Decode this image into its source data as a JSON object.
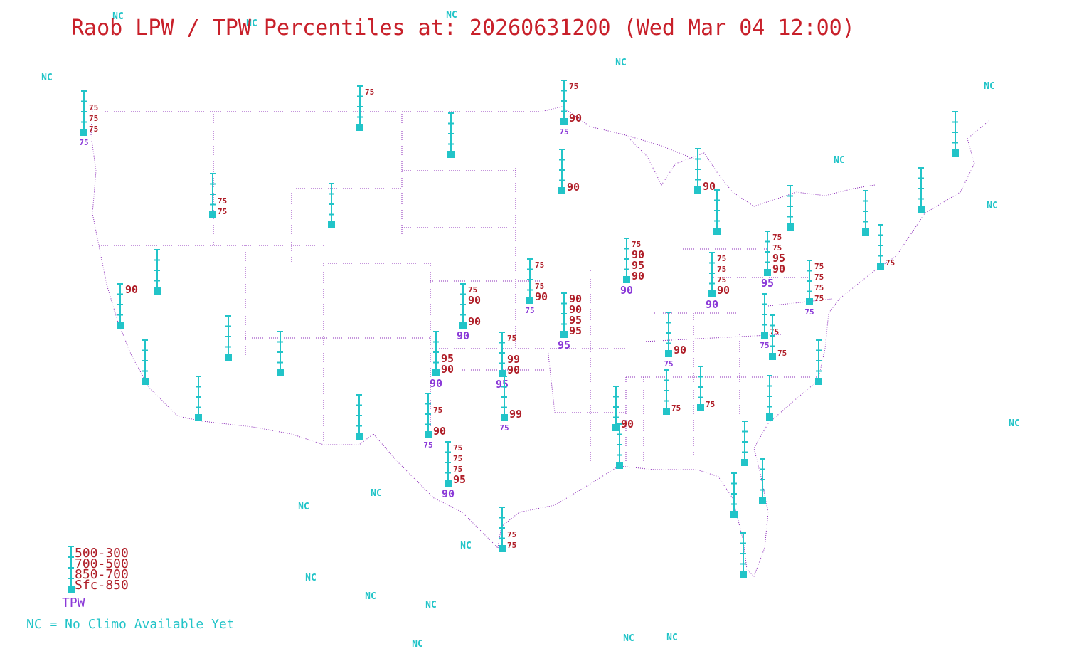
{
  "title": "Raob LPW / TPW Percentiles at: 20260631200 (Wed Mar 04 12:00)",
  "colors": {
    "title": "#c8202a",
    "layer": "#b0202a",
    "tpw": "#8b3ad8",
    "station": "#22c4c8",
    "nc": "#22c4c8",
    "boundary": "#8b2bb8"
  },
  "legend": {
    "layers": [
      "500-300",
      "700-500",
      "850-700",
      "Sfc-850"
    ],
    "tpw_label": "TPW",
    "nc_note": "NC = No Climo Available Yet"
  },
  "nc_label": "NC",
  "stations": [
    {
      "id": "uil",
      "layers": [
        "",
        "75",
        "75",
        "75"
      ],
      "tpw": "75"
    },
    {
      "id": "tfx",
      "layers": [
        "75",
        "",
        "",
        ""
      ],
      "tpw": ""
    },
    {
      "id": "bis",
      "layers": [
        "",
        "",
        "",
        ""
      ],
      "tpw": ""
    },
    {
      "id": "inl",
      "layers": [
        "75",
        "",
        "",
        "90"
      ],
      "tpw": "75"
    },
    {
      "id": "mpx",
      "layers": [
        "",
        "",
        "",
        "90"
      ],
      "tpw": ""
    },
    {
      "id": "boi",
      "layers": [
        "",
        "",
        "75",
        "75"
      ],
      "tpw": ""
    },
    {
      "id": "riw",
      "layers": [
        "",
        "",
        "",
        ""
      ],
      "tpw": ""
    },
    {
      "id": "mfr",
      "layers": [
        "",
        "",
        "",
        ""
      ],
      "tpw": ""
    },
    {
      "id": "rev",
      "layers": [
        "",
        "",
        "",
        ""
      ],
      "tpw": ""
    },
    {
      "id": "oak",
      "layers": [
        "90",
        "",
        "",
        ""
      ],
      "tpw": ""
    },
    {
      "id": "vbg",
      "layers": [
        "",
        "",
        "",
        ""
      ],
      "tpw": ""
    },
    {
      "id": "nkx",
      "layers": [
        "",
        "",
        "",
        ""
      ],
      "tpw": ""
    },
    {
      "id": "vef",
      "layers": [
        "",
        "",
        "",
        ""
      ],
      "tpw": ""
    },
    {
      "id": "slc",
      "layers": [
        "",
        "",
        "",
        ""
      ],
      "tpw": ""
    },
    {
      "id": "abq",
      "layers": [
        "",
        "",
        "",
        ""
      ],
      "tpw": ""
    },
    {
      "id": "ddc",
      "layers": [
        "75",
        "90",
        "",
        "90"
      ],
      "tpw": "90"
    },
    {
      "id": "top",
      "layers": [
        "75",
        "",
        "75",
        "90"
      ],
      "tpw": "75"
    },
    {
      "id": "sgf",
      "layers": [
        "90",
        "90",
        "95",
        "95"
      ],
      "tpw": "95"
    },
    {
      "id": "ilx",
      "layers": [
        "75",
        "90",
        "95",
        "90"
      ],
      "tpw": "90"
    },
    {
      "id": "ama",
      "layers": [
        "",
        "",
        "95",
        "90"
      ],
      "tpw": "90"
    },
    {
      "id": "oun",
      "layers": [
        "75",
        "",
        "99",
        "90"
      ],
      "tpw": "95"
    },
    {
      "id": "maf",
      "layers": [
        "",
        "75",
        "",
        "90"
      ],
      "tpw": "75"
    },
    {
      "id": "fwd",
      "layers": [
        "",
        "",
        "",
        "99"
      ],
      "tpw": "75"
    },
    {
      "id": "drt",
      "layers": [
        "75",
        "75",
        "75",
        "95"
      ],
      "tpw": "90"
    },
    {
      "id": "crp",
      "layers": [
        "",
        "",
        "75",
        "75"
      ],
      "tpw": ""
    },
    {
      "id": "lch",
      "layers": [
        "",
        "",
        "",
        ""
      ],
      "tpw": ""
    },
    {
      "id": "jan",
      "layers": [
        "",
        "",
        "",
        "90"
      ],
      "tpw": ""
    },
    {
      "id": "bna",
      "layers": [
        "",
        "",
        "",
        "90"
      ],
      "tpw": "75"
    },
    {
      "id": "bmx",
      "layers": [
        "",
        "",
        "",
        "75"
      ],
      "tpw": ""
    },
    {
      "id": "ffc",
      "layers": [
        "",
        "",
        "",
        "75"
      ],
      "tpw": ""
    },
    {
      "id": "chs",
      "layers": [
        "",
        "",
        "",
        ""
      ],
      "tpw": ""
    },
    {
      "id": "tlh",
      "layers": [
        "",
        "",
        "",
        ""
      ],
      "tpw": ""
    },
    {
      "id": "jax",
      "layers": [
        "",
        "",
        "",
        ""
      ],
      "tpw": ""
    },
    {
      "id": "tbw",
      "layers": [
        "",
        "",
        "",
        ""
      ],
      "tpw": ""
    },
    {
      "id": "xmr",
      "layers": [
        "",
        "",
        "",
        ""
      ],
      "tpw": ""
    },
    {
      "id": "mfl",
      "layers": [
        "",
        "",
        "",
        ""
      ],
      "tpw": ""
    },
    {
      "id": "apx",
      "layers": [
        "",
        "",
        "",
        "90"
      ],
      "tpw": ""
    },
    {
      "id": "dtx",
      "layers": [
        "",
        "",
        "",
        ""
      ],
      "tpw": ""
    },
    {
      "id": "iln",
      "layers": [
        "75",
        "75",
        "75",
        "90"
      ],
      "tpw": "90"
    },
    {
      "id": "pit",
      "layers": [
        "75",
        "75",
        "95",
        "90"
      ],
      "tpw": "95"
    },
    {
      "id": "buf",
      "layers": [
        "",
        "",
        "",
        ""
      ],
      "tpw": ""
    },
    {
      "id": "alb",
      "layers": [
        "",
        "",
        "",
        ""
      ],
      "tpw": ""
    },
    {
      "id": "iad",
      "layers": [
        "75",
        "75",
        "75",
        "75"
      ],
      "tpw": "75"
    },
    {
      "id": "rnk",
      "layers": [
        "",
        "",
        "",
        "75"
      ],
      "tpw": "75"
    },
    {
      "id": "gso",
      "layers": [
        "",
        "",
        "",
        "75"
      ],
      "tpw": ""
    },
    {
      "id": "mhx",
      "layers": [
        "",
        "",
        "",
        ""
      ],
      "tpw": ""
    },
    {
      "id": "okx",
      "layers": [
        "",
        "",
        "",
        "75"
      ],
      "tpw": ""
    },
    {
      "id": "gyx",
      "layers": [
        "",
        "",
        "",
        ""
      ],
      "tpw": ""
    },
    {
      "id": "car",
      "layers": [
        "",
        "",
        "",
        ""
      ],
      "tpw": ""
    }
  ]
}
